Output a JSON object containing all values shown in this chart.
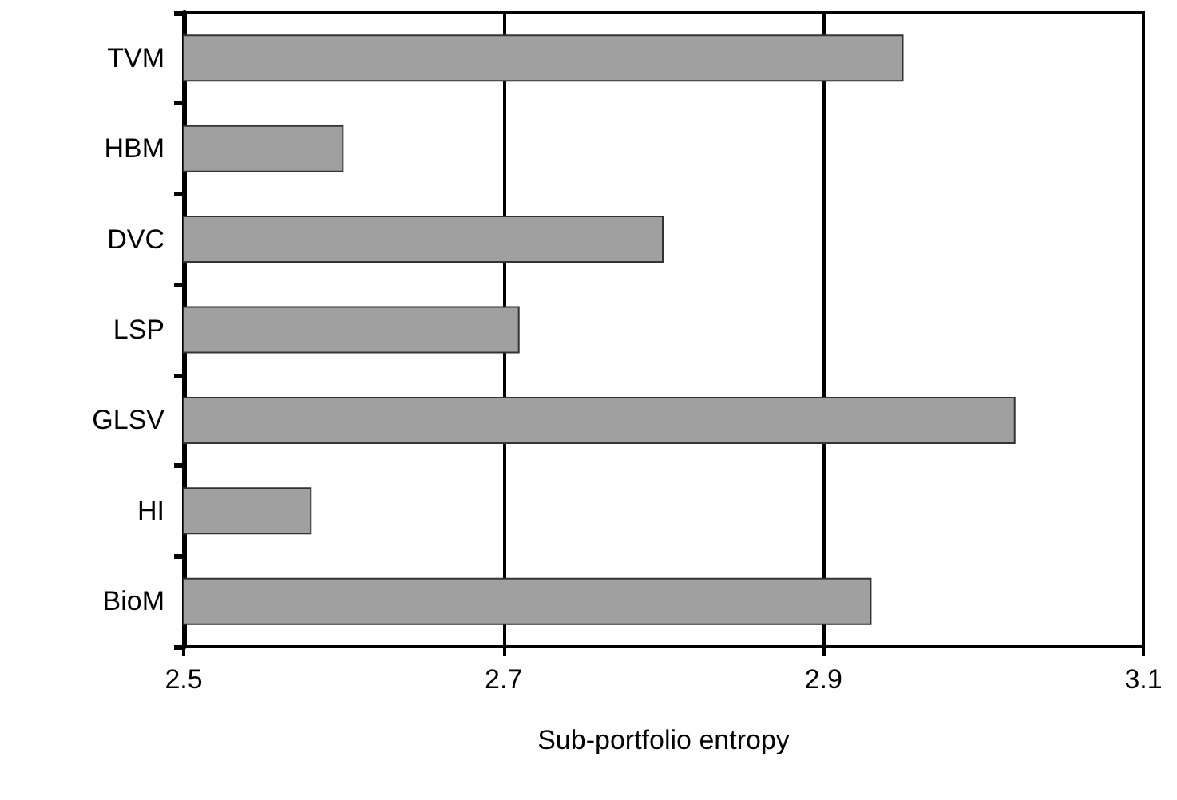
{
  "chart_data": {
    "type": "bar",
    "orientation": "horizontal",
    "xlabel": "Sub-portfolio entropy",
    "categories": [
      "TVM",
      "HBM",
      "DVC",
      "LSP",
      "GLSV",
      "HI",
      "BioM"
    ],
    "values": [
      2.95,
      2.6,
      2.8,
      2.71,
      3.02,
      2.58,
      2.93
    ],
    "color": "#a0a0a0",
    "xlim": [
      2.5,
      3.1
    ],
    "xticks": [
      2.5,
      2.7,
      2.9,
      3.1
    ],
    "grid": "x"
  }
}
